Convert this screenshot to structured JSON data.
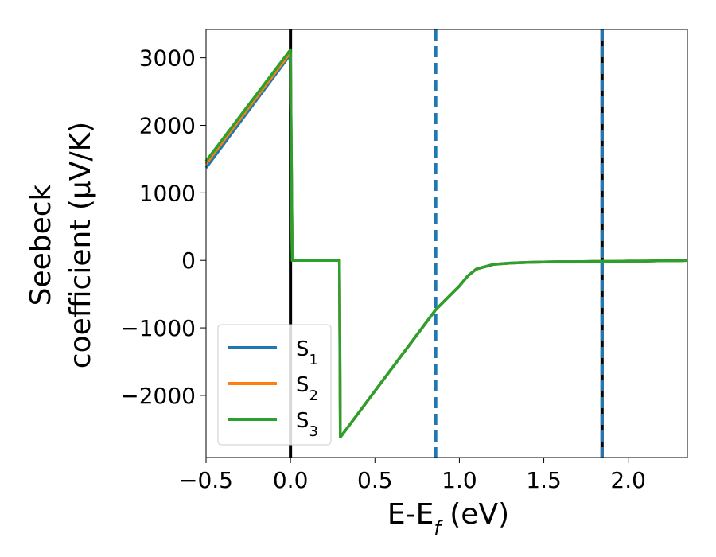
{
  "chart_data": {
    "type": "line",
    "xlabel": "E-E",
    "xlabel_sub": "f",
    "xlabel_unit": " (eV)",
    "ylabel_line1": "Seebeck",
    "ylabel_line2": "coefficient  (μV/K)",
    "xlim": [
      -0.5,
      2.35
    ],
    "ylim": [
      -2920,
      3420
    ],
    "xticks": [
      -0.5,
      0.0,
      0.5,
      1.0,
      1.5,
      2.0
    ],
    "xtick_labels": [
      "−0.5",
      "0.0",
      "0.5",
      "1.0",
      "1.5",
      "2.0"
    ],
    "yticks": [
      -2000,
      -1000,
      0,
      1000,
      2000,
      3000
    ],
    "ytick_labels": [
      "−2000",
      "−1000",
      "0",
      "1000",
      "2000",
      "3000"
    ],
    "grid": false,
    "legend_position": "bottom-left",
    "series": [
      {
        "name": "S",
        "sub": "1",
        "color": "#1f77b4",
        "x": [
          -0.5,
          0.0,
          0.01,
          0.29,
          0.295,
          0.86,
          1.0,
          1.05,
          1.1,
          1.2,
          1.3,
          1.4,
          1.5,
          1.6,
          1.7,
          1.8,
          1.9,
          2.0,
          2.1,
          2.2,
          2.3,
          2.35
        ],
        "y": [
          1370,
          3050,
          0,
          0,
          -2620,
          -730,
          -380,
          -230,
          -130,
          -60,
          -40,
          -30,
          -25,
          -20,
          -20,
          -15,
          -15,
          -10,
          -10,
          -5,
          -5,
          0
        ]
      },
      {
        "name": "S",
        "sub": "2",
        "color": "#ff7f0e",
        "x": [
          -0.5,
          0.0,
          0.01,
          0.29,
          0.295,
          0.86,
          1.0,
          1.05,
          1.1,
          1.2,
          1.3,
          1.4,
          1.5,
          1.6,
          1.7,
          1.8,
          1.9,
          2.0,
          2.1,
          2.2,
          2.3,
          2.35
        ],
        "y": [
          1430,
          3080,
          0,
          0,
          -2620,
          -730,
          -380,
          -230,
          -130,
          -60,
          -40,
          -30,
          -25,
          -20,
          -20,
          -15,
          -15,
          -10,
          -10,
          -5,
          -5,
          0
        ]
      },
      {
        "name": "S",
        "sub": "3",
        "color": "#2ca02c",
        "x": [
          -0.5,
          0.0,
          0.01,
          0.29,
          0.295,
          0.86,
          1.0,
          1.05,
          1.1,
          1.2,
          1.3,
          1.4,
          1.5,
          1.6,
          1.7,
          1.8,
          1.9,
          2.0,
          2.1,
          2.2,
          2.3,
          2.35
        ],
        "y": [
          1470,
          3120,
          0,
          0,
          -2620,
          -730,
          -380,
          -230,
          -130,
          -60,
          -40,
          -30,
          -25,
          -20,
          -20,
          -15,
          -15,
          -10,
          -10,
          -5,
          -5,
          0
        ]
      }
    ],
    "vlines": [
      {
        "x": 0.0,
        "color": "#000000",
        "style": "solid"
      },
      {
        "x": 0.86,
        "color": "#1f77b4",
        "style": "dashed"
      },
      {
        "x": 1.845,
        "color": "#000000",
        "style": "solid"
      },
      {
        "x": 1.845,
        "color": "#1f77b4",
        "style": "dashed"
      }
    ]
  }
}
